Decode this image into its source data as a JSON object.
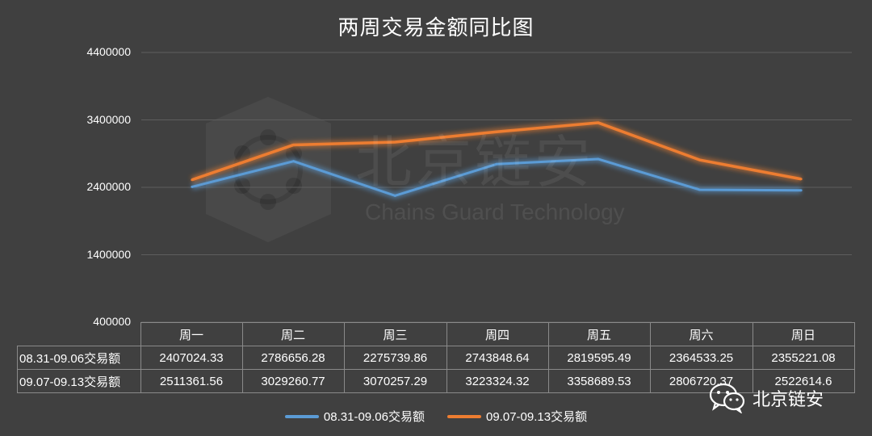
{
  "chart_data": {
    "type": "line",
    "title": "两周交易金额同比图",
    "categories": [
      "周一",
      "周二",
      "周三",
      "周四",
      "周五",
      "周六",
      "周日"
    ],
    "ylim": [
      400000,
      4400000
    ],
    "yticks": [
      "400000",
      "1400000",
      "2400000",
      "3400000",
      "4400000"
    ],
    "grid": true,
    "legend_position": "bottom",
    "series": [
      {
        "name": "08.31-09.06交易额",
        "color": "#5b9bd5",
        "values": [
          2407024.33,
          2786656.28,
          2275739.86,
          2743848.64,
          2819595.49,
          2364533.25,
          2355221.08
        ],
        "labels": [
          "2407024.33",
          "2786656.28",
          "2275739.86",
          "2743848.64",
          "2819595.49",
          "2364533.25",
          "2355221.08"
        ]
      },
      {
        "name": "09.07-09.13交易额",
        "color": "#ed7d31",
        "values": [
          2511361.56,
          3029260.77,
          3070257.29,
          3223324.32,
          3358689.53,
          2806720.37,
          2522614.6
        ],
        "labels": [
          "2511361.56",
          "3029260.77",
          "3070257.29",
          "3223324.32",
          "3358689.53",
          "2806720.37",
          "2522614.6"
        ]
      }
    ]
  },
  "watermark": {
    "main": "北京链安",
    "sub": "Chains Guard Technology"
  },
  "brand": {
    "name": "北京链安",
    "icon": "wechat-icon"
  }
}
